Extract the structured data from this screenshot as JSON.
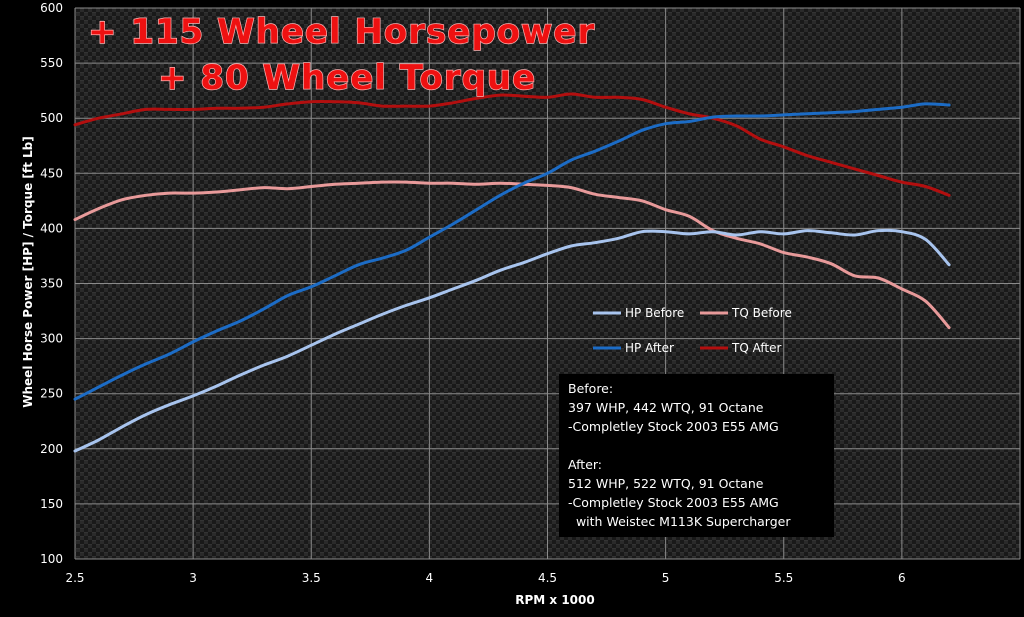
{
  "colors": {
    "hp_before": "#a8c4ee",
    "hp_after": "#1c6cc6",
    "tq_before": "#e89a9a",
    "tq_after": "#b30f0f",
    "banner": "#ee1111"
  },
  "banner": {
    "line1": "+ 115 Wheel Horsepower",
    "line2": "+ 80 Wheel Torque"
  },
  "info_box": {
    "before_heading": "Before:",
    "before_line1": "397 WHP, 442 WTQ, 91 Octane",
    "before_line2": "-Completley Stock 2003 E55 AMG",
    "after_heading": "After:",
    "after_line1": "512 WHP, 522 WTQ, 91 Octane",
    "after_line2": "-Completley Stock 2003 E55 AMG",
    "after_line3": "  with Weistec M113K Supercharger"
  },
  "chart_data": {
    "type": "line",
    "xlabel": "RPM x 1000",
    "ylabel": "Wheel Horse Power [HP] / Torque [ft Lb]",
    "xlim": [
      2.5,
      6.5
    ],
    "ylim": [
      100,
      600
    ],
    "xticks": [
      "2.5",
      "3",
      "3.5",
      "4",
      "4.5",
      "5",
      "5.5",
      "6"
    ],
    "yticks": [
      "100",
      "150",
      "200",
      "250",
      "300",
      "350",
      "400",
      "450",
      "500",
      "550",
      "600"
    ],
    "grid": true,
    "legend_position": "center-right",
    "series": [
      {
        "name": "HP Before",
        "x": [
          2.5,
          2.6,
          2.7,
          2.8,
          2.9,
          3.0,
          3.1,
          3.2,
          3.3,
          3.4,
          3.5,
          3.6,
          3.7,
          3.8,
          3.9,
          4.0,
          4.1,
          4.2,
          4.3,
          4.4,
          4.5,
          4.6,
          4.7,
          4.8,
          4.9,
          5.0,
          5.1,
          5.2,
          5.3,
          5.4,
          5.5,
          5.6,
          5.7,
          5.8,
          5.9,
          6.0,
          6.1,
          6.2
        ],
        "y": [
          198,
          208,
          220,
          231,
          240,
          248,
          257,
          267,
          276,
          284,
          294,
          304,
          313,
          322,
          330,
          337,
          345,
          353,
          362,
          369,
          377,
          384,
          387,
          391,
          397,
          397,
          395,
          397,
          394,
          397,
          395,
          398,
          396,
          394,
          398,
          397,
          390,
          367
        ]
      },
      {
        "name": "TQ Before",
        "x": [
          2.5,
          2.6,
          2.7,
          2.8,
          2.9,
          3.0,
          3.1,
          3.2,
          3.3,
          3.4,
          3.5,
          3.6,
          3.7,
          3.8,
          3.9,
          4.0,
          4.1,
          4.2,
          4.3,
          4.4,
          4.5,
          4.6,
          4.7,
          4.8,
          4.9,
          5.0,
          5.1,
          5.2,
          5.3,
          5.4,
          5.5,
          5.6,
          5.7,
          5.8,
          5.9,
          6.0,
          6.1,
          6.2
        ],
        "y": [
          408,
          418,
          426,
          430,
          432,
          432,
          433,
          435,
          437,
          436,
          438,
          440,
          441,
          442,
          442,
          441,
          441,
          440,
          441,
          440,
          439,
          437,
          431,
          428,
          425,
          417,
          411,
          398,
          391,
          386,
          378,
          374,
          368,
          357,
          355,
          345,
          334,
          310
        ]
      },
      {
        "name": "HP After",
        "x": [
          2.5,
          2.6,
          2.7,
          2.8,
          2.9,
          3.0,
          3.1,
          3.2,
          3.3,
          3.4,
          3.5,
          3.6,
          3.7,
          3.8,
          3.9,
          4.0,
          4.1,
          4.2,
          4.3,
          4.4,
          4.5,
          4.6,
          4.7,
          4.8,
          4.9,
          5.0,
          5.1,
          5.2,
          5.3,
          5.4,
          5.5,
          5.6,
          5.7,
          5.8,
          5.9,
          6.0,
          6.1,
          6.2
        ],
        "y": [
          245,
          256,
          267,
          277,
          286,
          297,
          307,
          316,
          327,
          339,
          347,
          357,
          367,
          373,
          380,
          392,
          404,
          417,
          430,
          441,
          450,
          462,
          470,
          479,
          489,
          495,
          497,
          501,
          502,
          502,
          503,
          504,
          505,
          506,
          508,
          510,
          513,
          512
        ]
      },
      {
        "name": "TQ After",
        "x": [
          2.5,
          2.6,
          2.7,
          2.8,
          2.9,
          3.0,
          3.1,
          3.2,
          3.3,
          3.4,
          3.5,
          3.6,
          3.7,
          3.8,
          3.9,
          4.0,
          4.1,
          4.2,
          4.3,
          4.4,
          4.5,
          4.6,
          4.7,
          4.8,
          4.9,
          5.0,
          5.1,
          5.2,
          5.3,
          5.4,
          5.5,
          5.6,
          5.7,
          5.8,
          5.9,
          6.0,
          6.1,
          6.2
        ],
        "y": [
          494,
          500,
          504,
          508,
          508,
          508,
          509,
          509,
          510,
          513,
          515,
          515,
          514,
          511,
          511,
          511,
          514,
          518,
          521,
          520,
          519,
          522,
          519,
          519,
          517,
          510,
          504,
          500,
          493,
          481,
          474,
          466,
          460,
          454,
          448,
          442,
          438,
          430
        ]
      }
    ]
  }
}
